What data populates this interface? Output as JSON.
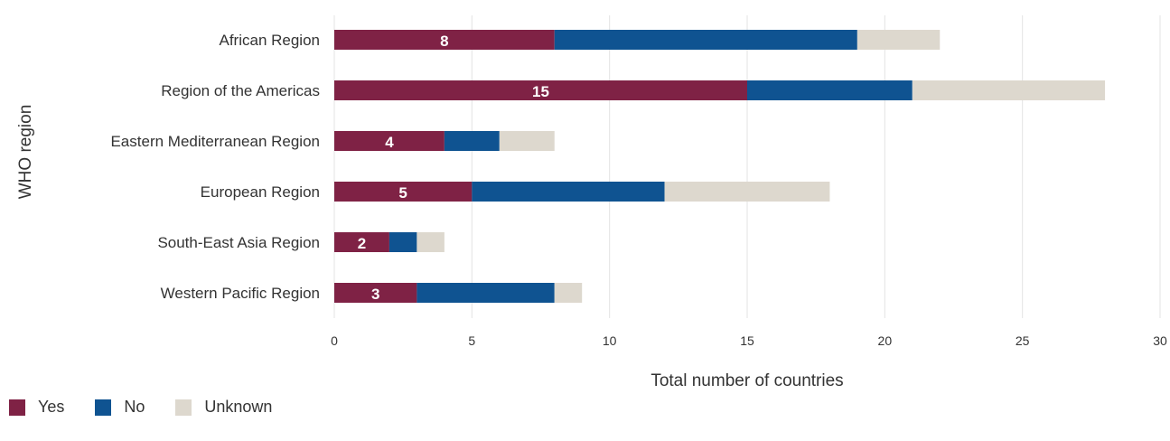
{
  "chart_data": {
    "type": "bar",
    "orientation": "horizontal",
    "stacked": true,
    "categories": [
      "African Region",
      "Region of the Americas",
      "Eastern Mediterranean Region",
      "European Region",
      "South-East Asia Region",
      "Western Pacific Region"
    ],
    "series": [
      {
        "name": "Yes",
        "color": "#7f2245",
        "values": [
          8,
          15,
          4,
          5,
          2,
          3
        ]
      },
      {
        "name": "No",
        "color": "#0f5391",
        "values": [
          11,
          6,
          2,
          7,
          1,
          5
        ]
      },
      {
        "name": "Unknown",
        "color": "#ddd8ce",
        "values": [
          3,
          7,
          2,
          6,
          1,
          1
        ]
      }
    ],
    "data_labels": [
      "8",
      "15",
      "4",
      "5",
      "2",
      "3"
    ],
    "xlabel": "Total number of countries",
    "ylabel": "WHO region",
    "xlim": [
      0,
      30
    ],
    "xticks": [
      0,
      5,
      10,
      15,
      20,
      25,
      30
    ],
    "grid": "vertical",
    "legend_position": "bottom-left"
  }
}
